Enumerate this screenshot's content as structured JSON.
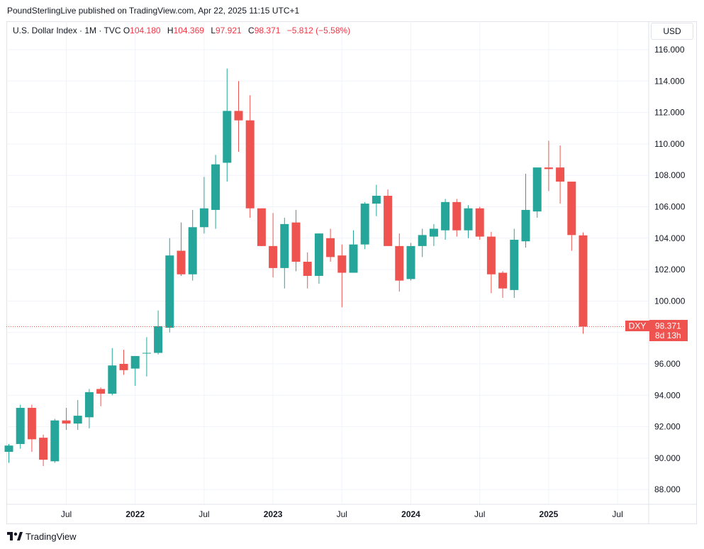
{
  "publisher_line": "PoundSterlingLive published on TradingView.com, Apr 22, 2025 11:15 UTC+1",
  "legend": {
    "title": "U.S. Dollar Index · 1M · TVC",
    "o_label": "O",
    "o_value": "104.180",
    "h_label": "H",
    "h_value": "104.369",
    "l_label": "L",
    "l_value": "97.921",
    "c_label": "C",
    "c_value": "98.371",
    "change": "−5.812 (−5.58%)"
  },
  "currency": "USD",
  "price_tag": {
    "symbol": "DXY",
    "value": "98.371",
    "countdown": "8d 13h"
  },
  "logo_text": "TradingView",
  "colors": {
    "up": "#26a69a",
    "down": "#ef5350",
    "grid": "#f0f3fa",
    "price_line": "#ef5350"
  },
  "chart_data": {
    "type": "candlestick",
    "title": "U.S. Dollar Index · 1M · TVC",
    "ylim": [
      87,
      117
    ],
    "y_ticks": [
      "88.000",
      "90.000",
      "92.000",
      "94.000",
      "96.000",
      "98.000",
      "100.000",
      "102.000",
      "104.000",
      "106.000",
      "108.000",
      "110.000",
      "112.000",
      "114.000",
      "116.000"
    ],
    "y_tick_values": [
      88,
      90,
      92,
      94,
      96,
      98,
      100,
      102,
      104,
      106,
      108,
      110,
      112,
      114,
      116
    ],
    "x_ticks": [
      {
        "label": "Jul",
        "index": 5,
        "bold": false
      },
      {
        "label": "2022",
        "index": 11,
        "bold": true
      },
      {
        "label": "Jul",
        "index": 17,
        "bold": false
      },
      {
        "label": "2023",
        "index": 23,
        "bold": true
      },
      {
        "label": "Jul",
        "index": 29,
        "bold": false
      },
      {
        "label": "2024",
        "index": 35,
        "bold": true
      },
      {
        "label": "Jul",
        "index": 41,
        "bold": false
      },
      {
        "label": "2025",
        "index": 47,
        "bold": true
      },
      {
        "label": "Jul",
        "index": 53,
        "bold": false
      }
    ],
    "last_price": 98.371,
    "candles": [
      {
        "o": 90.4,
        "h": 90.9,
        "l": 89.7,
        "c": 90.8
      },
      {
        "o": 90.9,
        "h": 93.4,
        "l": 90.6,
        "c": 93.2
      },
      {
        "o": 93.2,
        "h": 93.4,
        "l": 90.4,
        "c": 91.2
      },
      {
        "o": 91.3,
        "h": 91.5,
        "l": 89.5,
        "c": 89.9
      },
      {
        "o": 89.8,
        "h": 92.5,
        "l": 89.7,
        "c": 92.4
      },
      {
        "o": 92.4,
        "h": 93.2,
        "l": 91.8,
        "c": 92.2
      },
      {
        "o": 92.2,
        "h": 93.7,
        "l": 91.8,
        "c": 92.7
      },
      {
        "o": 92.6,
        "h": 94.4,
        "l": 91.9,
        "c": 94.2
      },
      {
        "o": 94.4,
        "h": 94.5,
        "l": 93.3,
        "c": 94.1
      },
      {
        "o": 94.1,
        "h": 97.0,
        "l": 94.0,
        "c": 95.9
      },
      {
        "o": 96.0,
        "h": 96.9,
        "l": 95.3,
        "c": 95.6
      },
      {
        "o": 95.7,
        "h": 96.5,
        "l": 94.6,
        "c": 96.5
      },
      {
        "o": 96.7,
        "h": 97.7,
        "l": 95.2,
        "c": 96.7
      },
      {
        "o": 96.7,
        "h": 99.4,
        "l": 96.6,
        "c": 98.4
      },
      {
        "o": 98.3,
        "h": 104.0,
        "l": 98.0,
        "c": 102.9
      },
      {
        "o": 103.2,
        "h": 105.0,
        "l": 101.6,
        "c": 101.7
      },
      {
        "o": 101.7,
        "h": 105.8,
        "l": 101.3,
        "c": 104.7
      },
      {
        "o": 104.7,
        "h": 107.9,
        "l": 104.3,
        "c": 105.9
      },
      {
        "o": 105.8,
        "h": 109.3,
        "l": 104.6,
        "c": 108.7
      },
      {
        "o": 108.8,
        "h": 114.8,
        "l": 107.6,
        "c": 112.1
      },
      {
        "o": 112.1,
        "h": 114.0,
        "l": 109.5,
        "c": 111.5
      },
      {
        "o": 111.5,
        "h": 113.1,
        "l": 105.3,
        "c": 105.9
      },
      {
        "o": 105.9,
        "h": 105.9,
        "l": 103.5,
        "c": 103.5
      },
      {
        "o": 103.5,
        "h": 105.6,
        "l": 101.5,
        "c": 102.1
      },
      {
        "o": 102.1,
        "h": 105.3,
        "l": 100.8,
        "c": 104.9
      },
      {
        "o": 105.0,
        "h": 105.8,
        "l": 101.9,
        "c": 102.5
      },
      {
        "o": 102.5,
        "h": 103.1,
        "l": 100.8,
        "c": 101.6
      },
      {
        "o": 101.6,
        "h": 104.3,
        "l": 101.1,
        "c": 104.3
      },
      {
        "o": 104.0,
        "h": 104.6,
        "l": 102.5,
        "c": 102.8
      },
      {
        "o": 102.9,
        "h": 103.6,
        "l": 99.6,
        "c": 101.8
      },
      {
        "o": 101.8,
        "h": 104.5,
        "l": 101.8,
        "c": 103.6
      },
      {
        "o": 103.6,
        "h": 106.3,
        "l": 103.3,
        "c": 106.2
      },
      {
        "o": 106.2,
        "h": 107.4,
        "l": 105.4,
        "c": 106.7
      },
      {
        "o": 106.7,
        "h": 107.1,
        "l": 103.5,
        "c": 103.5
      },
      {
        "o": 103.5,
        "h": 104.3,
        "l": 100.6,
        "c": 101.3
      },
      {
        "o": 101.4,
        "h": 103.7,
        "l": 101.3,
        "c": 103.5
      },
      {
        "o": 103.5,
        "h": 104.6,
        "l": 102.8,
        "c": 104.2
      },
      {
        "o": 104.1,
        "h": 104.9,
        "l": 103.5,
        "c": 104.6
      },
      {
        "o": 104.5,
        "h": 106.5,
        "l": 103.9,
        "c": 106.3
      },
      {
        "o": 106.3,
        "h": 106.5,
        "l": 104.1,
        "c": 104.5
      },
      {
        "o": 104.5,
        "h": 106.1,
        "l": 104.0,
        "c": 105.9
      },
      {
        "o": 105.9,
        "h": 106.0,
        "l": 103.9,
        "c": 104.1
      },
      {
        "o": 104.1,
        "h": 104.4,
        "l": 100.5,
        "c": 101.7
      },
      {
        "o": 101.8,
        "h": 101.9,
        "l": 100.2,
        "c": 100.8
      },
      {
        "o": 100.7,
        "h": 104.6,
        "l": 100.2,
        "c": 103.9
      },
      {
        "o": 103.8,
        "h": 108.1,
        "l": 103.4,
        "c": 105.8
      },
      {
        "o": 105.7,
        "h": 108.5,
        "l": 105.3,
        "c": 108.5
      },
      {
        "o": 108.5,
        "h": 110.2,
        "l": 107.0,
        "c": 108.4
      },
      {
        "o": 108.5,
        "h": 109.9,
        "l": 106.2,
        "c": 107.6
      },
      {
        "o": 107.6,
        "h": 107.6,
        "l": 103.2,
        "c": 104.2
      },
      {
        "o": 104.18,
        "h": 104.369,
        "l": 97.921,
        "c": 98.371
      }
    ]
  }
}
